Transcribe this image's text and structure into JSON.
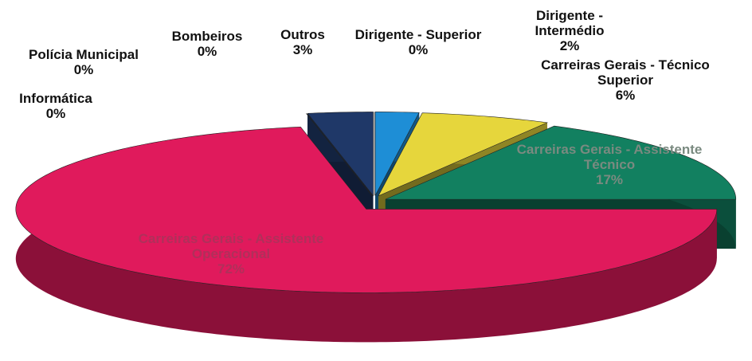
{
  "chart_data": {
    "type": "pie",
    "categories": [
      "Dirigente - Superior",
      "Dirigente - Intermédio",
      "Carreiras Gerais - Técnico Superior",
      "Carreiras Gerais - Assistente Técnico",
      "Carreiras Gerais - Assistente Operacional",
      "Informática",
      "Polícia Municipal",
      "Bombeiros",
      "Outros"
    ],
    "values": [
      0,
      2,
      6,
      17,
      72,
      0,
      0,
      0,
      3
    ],
    "value_labels": [
      "0%",
      "2%",
      "6%",
      "17%",
      "72%",
      "0%",
      "0%",
      "0%",
      "3%"
    ],
    "colors": [
      "#7cc4ea",
      "#1e8ed6",
      "#e6d63c",
      "#128060",
      "#e01a5c",
      "#8a8a96",
      "#6a6a78",
      "#4a4a5a",
      "#1f3868"
    ]
  }
}
